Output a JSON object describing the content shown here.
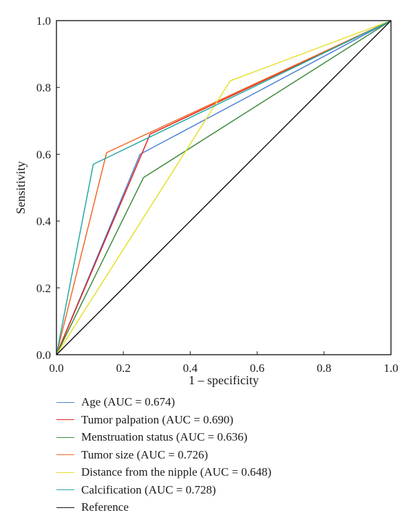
{
  "chart_data": {
    "type": "line",
    "xlabel": "1 – specificity",
    "ylabel": "Sensitivity",
    "xlim": [
      0,
      1
    ],
    "ylim": [
      0,
      1
    ],
    "xticks": [
      "0.0",
      "0.2",
      "0.4",
      "0.6",
      "0.8",
      "1.0"
    ],
    "yticks": [
      "0.0",
      "0.2",
      "0.4",
      "0.6",
      "0.8",
      "1.0"
    ],
    "grid": false,
    "legend_position": "bottom",
    "series": [
      {
        "name": "Age (AUC = 0.674)",
        "color": "#4a7fd1",
        "x": [
          0,
          0.25,
          1
        ],
        "y": [
          0,
          0.6,
          1
        ]
      },
      {
        "name": "Tumor palpation (AUC = 0.690)",
        "color": "#e0231c",
        "x": [
          0,
          0.28,
          1
        ],
        "y": [
          0,
          0.66,
          1
        ]
      },
      {
        "name": "Menstruation status (AUC = 0.636)",
        "color": "#3b8a3b",
        "x": [
          0,
          0.26,
          1
        ],
        "y": [
          0,
          0.53,
          1
        ]
      },
      {
        "name": "Tumor size (AUC = 0.726)",
        "color": "#f26522",
        "x": [
          0,
          0.15,
          1
        ],
        "y": [
          0,
          0.605,
          1
        ]
      },
      {
        "name": "Distance from the nipple (AUC = 0.648)",
        "color": "#e6df2a",
        "x": [
          0,
          0.52,
          1
        ],
        "y": [
          0,
          0.82,
          1
        ]
      },
      {
        "name": "Calcification (AUC = 0.728)",
        "color": "#23a8a3",
        "x": [
          0,
          0.11,
          1
        ],
        "y": [
          0,
          0.57,
          1
        ]
      },
      {
        "name": "Reference",
        "color": "#111111",
        "x": [
          0,
          1
        ],
        "y": [
          0,
          1
        ]
      }
    ]
  }
}
